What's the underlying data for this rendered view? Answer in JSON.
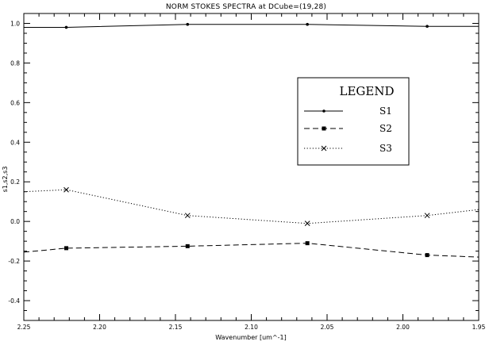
{
  "chart_data": {
    "type": "line",
    "title": "NORM STOKES SPECTRA at DCube=(19,28)",
    "xlabel": "Wavenumber [um^-1]",
    "ylabel": "s1,s2,s3",
    "xlim": [
      2.25,
      1.95
    ],
    "ylim": [
      -0.5,
      1.05
    ],
    "xticks": [
      "2.25",
      "2.20",
      "2.15",
      "2.10",
      "2.05",
      "2.00",
      "1.95"
    ],
    "yticks": [
      "-0.4",
      "-0.2",
      "0.0",
      "0.2",
      "0.4",
      "0.6",
      "0.8",
      "1.0"
    ],
    "legend": {
      "title": "LEGEND",
      "position": "right"
    },
    "series": [
      {
        "name": "S1",
        "style": "solid",
        "marker": "dot",
        "x": [
          2.25,
          2.222,
          2.142,
          2.063,
          1.984,
          1.95
        ],
        "values": [
          0.98,
          0.98,
          0.995,
          0.995,
          0.985,
          0.985
        ]
      },
      {
        "name": "S2",
        "style": "dashed",
        "marker": "square",
        "x": [
          2.25,
          2.222,
          2.142,
          2.063,
          1.984,
          1.95
        ],
        "values": [
          -0.155,
          -0.135,
          -0.125,
          -0.11,
          -0.17,
          -0.18
        ]
      },
      {
        "name": "S3",
        "style": "dotted",
        "marker": "x",
        "x": [
          2.25,
          2.222,
          2.142,
          2.063,
          1.984,
          1.95
        ],
        "values": [
          0.15,
          0.16,
          0.03,
          -0.01,
          0.03,
          0.06
        ]
      }
    ]
  }
}
